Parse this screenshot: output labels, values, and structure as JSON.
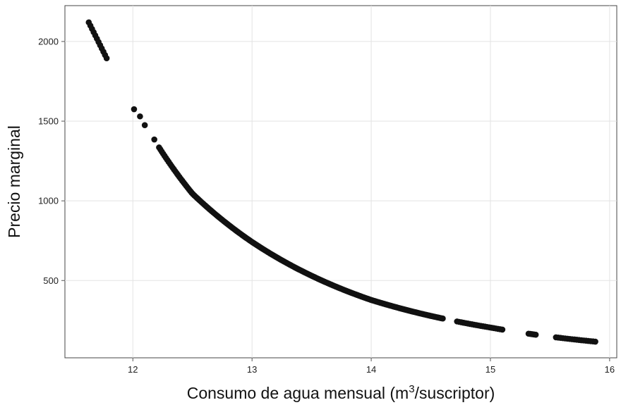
{
  "chart_data": {
    "type": "scatter",
    "title": "",
    "xlabel": {
      "prefix": "Consumo de agua mensual (m",
      "superscript": "3",
      "suffix": "/suscriptor)"
    },
    "ylabel": "Precio marginal",
    "xlim": [
      11.43,
      16.06
    ],
    "ylim": [
      15,
      2225
    ],
    "x_ticks": [
      12,
      13,
      14,
      15,
      16
    ],
    "x_tick_labels": [
      "12",
      "13",
      "14",
      "15",
      "16"
    ],
    "y_ticks": [
      500,
      1000,
      1500,
      2000
    ],
    "y_tick_labels": [
      "500",
      "1000",
      "1500",
      "2000"
    ],
    "grid": true,
    "legend": "none",
    "marker_color": "#111111",
    "series": [
      {
        "segments": [
          {
            "x_start": 11.63,
            "x_end": 11.78,
            "n": 12,
            "curve": "steep",
            "y_start": 2120,
            "y_end": 1895
          },
          {
            "x": [
              12.01,
              12.06,
              12.1,
              12.18
            ],
            "y": [
              1575,
              1530,
              1475,
              1385
            ]
          },
          {
            "x_start": 12.22,
            "x_end": 14.6,
            "n": 210,
            "curve": "main"
          },
          {
            "x_start": 14.72,
            "x_end": 15.1,
            "n": 22,
            "curve": "main"
          },
          {
            "x_start": 15.32,
            "x_end": 15.38,
            "n": 5,
            "curve": "main"
          },
          {
            "x_start": 15.55,
            "x_end": 15.88,
            "n": 18,
            "curve": "main"
          }
        ],
        "curve_points": {
          "x": [
            12.22,
            12.5,
            13.0,
            13.5,
            14.0,
            14.5,
            15.0,
            15.5,
            15.9
          ],
          "y": [
            1335,
            1045,
            742,
            530,
            378,
            278,
            205,
            148,
            115
          ]
        }
      }
    ]
  }
}
